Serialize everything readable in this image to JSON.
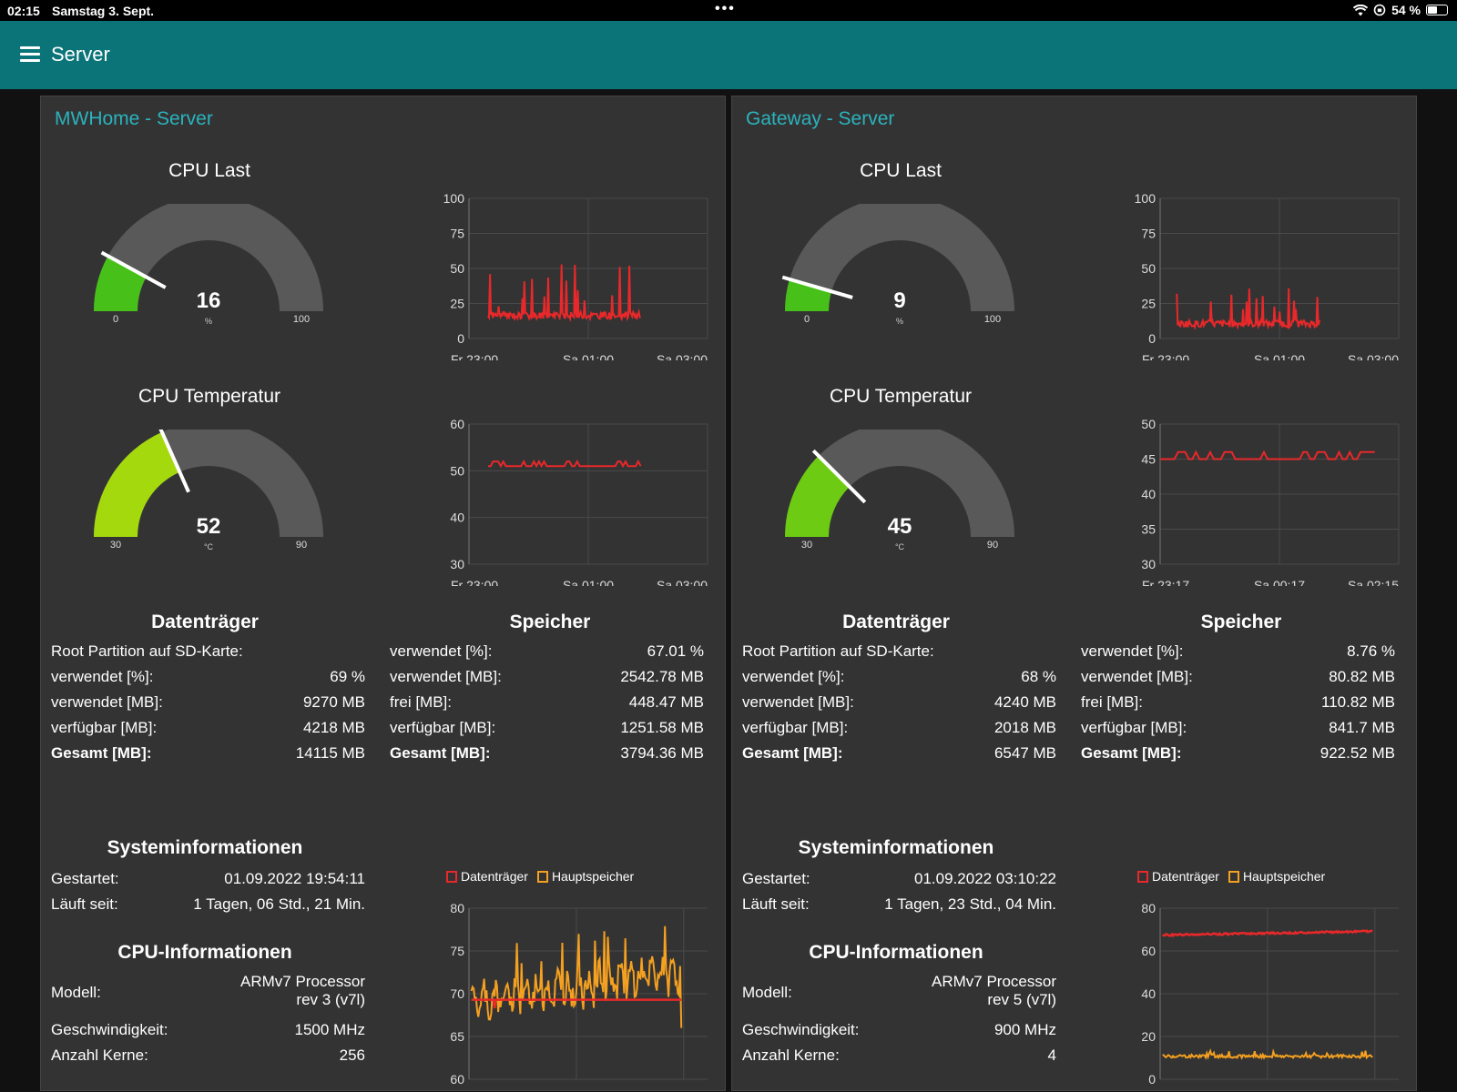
{
  "status": {
    "time": "02:15",
    "date": "Samstag 3. Sept.",
    "battery": "54 %",
    "battery_level": 0.54
  },
  "app": {
    "title": "Server"
  },
  "colors": {
    "accent": "#0b7478",
    "panel_title": "#2bb3be",
    "line": "#e8282a",
    "mem": "#f4a020"
  },
  "panels": [
    {
      "title": "MWHome - Server",
      "cpu_load": {
        "title": "CPU Last",
        "value": "16",
        "unit": "%",
        "min": "0",
        "max": "100",
        "level": 0.16,
        "color": "#47c11a"
      },
      "cpu_temp": {
        "title": "CPU Temperatur",
        "value": "52",
        "unit": "°C",
        "min": "30",
        "max": "90",
        "level": 0.367,
        "color": "#a4d90e"
      },
      "load_chart": {
        "yticks": [
          "100",
          "75",
          "50",
          "25",
          "0"
        ],
        "xticks": [
          "Fr 23:00",
          "Sa 01:00",
          "Sa 03:00"
        ]
      },
      "temp_chart": {
        "yticks": [
          "60",
          "50",
          "40",
          "30"
        ],
        "xticks": [
          "Fr 23:00",
          "Sa 01:00",
          "Sa 03:00"
        ]
      },
      "disk": {
        "title": "Datenträger",
        "subtitle": "Root Partition auf SD-Karte:",
        "rows": [
          [
            "verwendet [%]:",
            "69 %"
          ],
          [
            "verwendet [MB]:",
            "9270 MB"
          ],
          [
            "verfügbar [MB]:",
            "4218 MB"
          ]
        ],
        "total": [
          "Gesamt [MB]:",
          "14115 MB"
        ]
      },
      "memory": {
        "title": "Speicher",
        "rows": [
          [
            "verwendet [%]:",
            "67.01 %"
          ],
          [
            "verwendet [MB]:",
            "2542.78 MB"
          ],
          [
            "frei [MB]:",
            "448.47 MB"
          ],
          [
            "verfügbar [MB]:",
            "1251.58 MB"
          ]
        ],
        "total": [
          "Gesamt [MB]:",
          "3794.36 MB"
        ]
      },
      "sys": {
        "title": "Systeminformationen",
        "started_label": "Gestartet:",
        "started": "01.09.2022 19:54:11",
        "uptime_label": "Läuft seit:",
        "uptime": "1 Tagen, 06 Std., 21 Min."
      },
      "cpuinfo": {
        "title": "CPU-Informationen",
        "model_label": "Modell:",
        "model1": "ARMv7 Processor",
        "model2": "rev 3 (v7l)",
        "speed_label": "Geschwindigkeit:",
        "speed": "1500 MHz",
        "cores_label": "Anzahl Kerne:",
        "cores": "256"
      },
      "usage_chart": {
        "legend": [
          "Datenträger",
          "Hauptspeicher"
        ],
        "yticks": [
          "80",
          "75",
          "70",
          "65",
          "60"
        ]
      }
    },
    {
      "title": "Gateway - Server",
      "cpu_load": {
        "title": "CPU Last",
        "value": "9",
        "unit": "%",
        "min": "0",
        "max": "100",
        "level": 0.09,
        "color": "#47c11a"
      },
      "cpu_temp": {
        "title": "CPU Temperatur",
        "value": "45",
        "unit": "°C",
        "min": "30",
        "max": "90",
        "level": 0.25,
        "color": "#6ccb12"
      },
      "load_chart": {
        "yticks": [
          "100",
          "75",
          "50",
          "25",
          "0"
        ],
        "xticks": [
          "Fr 23:00",
          "Sa 01:00",
          "Sa 03:00"
        ]
      },
      "temp_chart": {
        "yticks": [
          "50",
          "45",
          "40",
          "35",
          "30"
        ],
        "xticks": [
          "Fr 23:17",
          "Sa 00:17",
          "Sa 02:15"
        ]
      },
      "disk": {
        "title": "Datenträger",
        "subtitle": "Root Partition auf SD-Karte:",
        "rows": [
          [
            "verwendet [%]:",
            "68 %"
          ],
          [
            "verwendet [MB]:",
            "4240 MB"
          ],
          [
            "verfügbar [MB]:",
            "2018 MB"
          ]
        ],
        "total": [
          "Gesamt [MB]:",
          "6547 MB"
        ]
      },
      "memory": {
        "title": "Speicher",
        "rows": [
          [
            "verwendet [%]:",
            "8.76 %"
          ],
          [
            "verwendet [MB]:",
            "80.82 MB"
          ],
          [
            "frei [MB]:",
            "110.82 MB"
          ],
          [
            "verfügbar [MB]:",
            "841.7 MB"
          ]
        ],
        "total": [
          "Gesamt [MB]:",
          "922.52 MB"
        ]
      },
      "sys": {
        "title": "Systeminformationen",
        "started_label": "Gestartet:",
        "started": "01.09.2022 03:10:22",
        "uptime_label": "Läuft seit:",
        "uptime": "1 Tagen, 23 Std., 04 Min."
      },
      "cpuinfo": {
        "title": "CPU-Informationen",
        "model_label": "Modell:",
        "model1": "ARMv7 Processor",
        "model2": "rev 5 (v7l)",
        "speed_label": "Geschwindigkeit:",
        "speed": "900 MHz",
        "cores_label": "Anzahl Kerne:",
        "cores": "4"
      },
      "usage_chart": {
        "legend": [
          "Datenträger",
          "Hauptspeicher"
        ],
        "yticks": [
          "80",
          "60",
          "40",
          "20",
          "0"
        ]
      }
    }
  ]
}
